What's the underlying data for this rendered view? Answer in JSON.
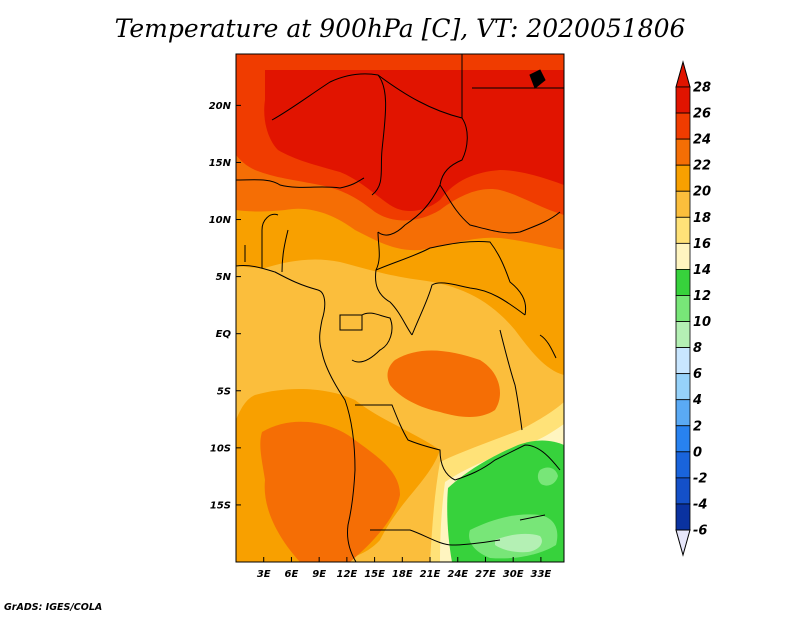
{
  "title": "Temperature at 900hPa [C], VT: 2020051806",
  "credit": "GrADS: IGES/COLA",
  "map": {
    "lon_range": [
      0,
      35.5
    ],
    "lat_range": [
      -20,
      24.5
    ],
    "lon_ticks": [
      {
        "value": 3,
        "label": "3E"
      },
      {
        "value": 6,
        "label": "6E"
      },
      {
        "value": 9,
        "label": "9E"
      },
      {
        "value": 12,
        "label": "12E"
      },
      {
        "value": 15,
        "label": "15E"
      },
      {
        "value": 18,
        "label": "18E"
      },
      {
        "value": 21,
        "label": "21E"
      },
      {
        "value": 24,
        "label": "24E"
      },
      {
        "value": 27,
        "label": "27E"
      },
      {
        "value": 30,
        "label": "30E"
      },
      {
        "value": 33,
        "label": "33E"
      }
    ],
    "lat_ticks": [
      {
        "value": 20,
        "label": "20N"
      },
      {
        "value": 15,
        "label": "15N"
      },
      {
        "value": 10,
        "label": "10N"
      },
      {
        "value": 5,
        "label": "5N"
      },
      {
        "value": 0,
        "label": "EQ"
      },
      {
        "value": -5,
        "label": "5S"
      },
      {
        "value": -10,
        "label": "10S"
      },
      {
        "value": -15,
        "label": "15S"
      }
    ]
  },
  "colorbar": {
    "levels": [
      28,
      26,
      24,
      22,
      20,
      18,
      16,
      14,
      12,
      10,
      8,
      6,
      4,
      2,
      0,
      -2,
      -4,
      -6
    ],
    "colors": [
      "#e11400",
      "#f03c00",
      "#f56e05",
      "#f8a000",
      "#fbbe3c",
      "#ffe278",
      "#fff5c0",
      "#37d23c",
      "#78e678",
      "#b4f0b4",
      "#c8e6ff",
      "#96d2fa",
      "#5aaaf5",
      "#2882f0",
      "#1964dc",
      "#1450c8",
      "#0a32a0",
      "#001450"
    ],
    "top_color": "#e11400",
    "bottom_color": "#e6e6fa"
  }
}
